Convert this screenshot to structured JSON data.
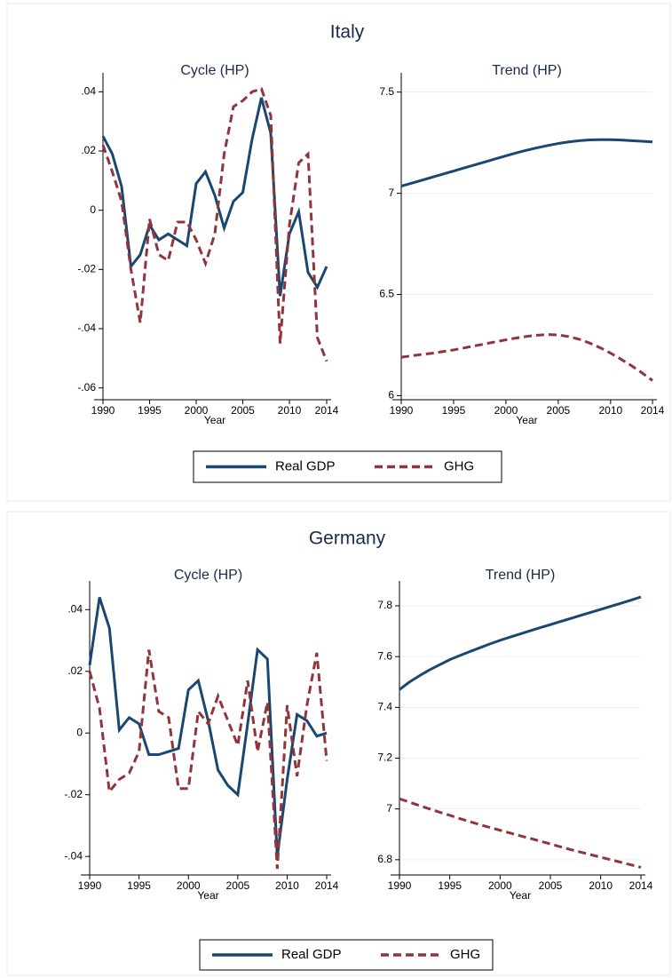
{
  "figures": [
    {
      "title": "Italy"
    },
    {
      "title": "Germany"
    }
  ],
  "chart_data": [
    {
      "type": "line",
      "title": "Cycle (HP)",
      "xlabel": "Year",
      "x": [
        1990,
        1991,
        1992,
        1993,
        1994,
        1995,
        1996,
        1997,
        1998,
        1999,
        2000,
        2001,
        2002,
        2003,
        2004,
        2005,
        2006,
        2007,
        2008,
        2009,
        2010,
        2011,
        2012,
        2013,
        2014
      ],
      "xlim": [
        1990,
        2014
      ],
      "xticks": [
        1990,
        1995,
        2000,
        2005,
        2010,
        2014
      ],
      "ylim": [
        -0.064,
        0.044
      ],
      "yticks": [
        {
          "value": 0.04,
          "label": ".04"
        },
        {
          "value": 0.02,
          "label": ".02"
        },
        0,
        {
          "value": -0.02,
          "label": "-.02"
        },
        {
          "value": -0.04,
          "label": "-.04"
        },
        {
          "value": -0.06,
          "label": "-.06"
        }
      ],
      "grid": false,
      "series": [
        {
          "name": "Real GDP",
          "color": "#1a476f",
          "dash": false,
          "values": [
            0.025,
            0.019,
            0.008,
            -0.019,
            -0.015,
            -0.005,
            -0.01,
            -0.008,
            -0.01,
            -0.012,
            0.009,
            0.013,
            0.005,
            -0.006,
            0.003,
            0.006,
            0.024,
            0.038,
            0.026,
            -0.029,
            -0.008,
            -0.0005,
            -0.021,
            -0.026,
            -0.019
          ]
        },
        {
          "name": "GHG",
          "color": "#90353b",
          "dash": true,
          "values": [
            0.022,
            0.013,
            0.003,
            -0.02,
            -0.038,
            -0.003,
            -0.015,
            -0.017,
            -0.004,
            -0.004,
            -0.01,
            -0.018,
            -0.008,
            0.019,
            0.035,
            0.037,
            0.04,
            0.041,
            0.032,
            -0.045,
            -0.005,
            0.016,
            0.019,
            -0.043,
            -0.051
          ]
        }
      ]
    },
    {
      "type": "line",
      "title": "Trend (HP)",
      "xlabel": "Year",
      "x": [
        1990,
        1991,
        1992,
        1993,
        1994,
        1995,
        1996,
        1997,
        1998,
        1999,
        2000,
        2001,
        2002,
        2003,
        2004,
        2005,
        2006,
        2007,
        2008,
        2009,
        2010,
        2011,
        2012,
        2013,
        2014
      ],
      "xlim": [
        1990,
        2014
      ],
      "xticks": [
        1990,
        1995,
        2000,
        2005,
        2010,
        2014
      ],
      "ylim": [
        5.98,
        7.56
      ],
      "yticks": [
        7.5,
        7,
        6.5,
        6
      ],
      "grid": true,
      "series": [
        {
          "color": "#1a476f",
          "dash": false,
          "values": [
            7.035,
            7.05,
            7.065,
            7.08,
            7.095,
            7.11,
            7.125,
            7.14,
            7.155,
            7.17,
            7.185,
            7.2,
            7.213,
            7.225,
            7.236,
            7.246,
            7.254,
            7.26,
            7.264,
            7.265,
            7.265,
            7.263,
            7.26,
            7.257,
            7.254
          ]
        },
        {
          "color": "#90353b",
          "dash": true,
          "values": [
            6.19,
            6.197,
            6.204,
            6.21,
            6.218,
            6.226,
            6.236,
            6.246,
            6.256,
            6.266,
            6.276,
            6.285,
            6.293,
            6.299,
            6.302,
            6.3,
            6.292,
            6.279,
            6.26,
            6.237,
            6.21,
            6.18,
            6.148,
            6.113,
            6.075
          ]
        }
      ]
    },
    {
      "type": "line",
      "title": "Cycle (HP)",
      "xlabel": "Year",
      "x": [
        1990,
        1991,
        1992,
        1993,
        1994,
        1995,
        1996,
        1997,
        1998,
        1999,
        2000,
        2001,
        2002,
        2003,
        2004,
        2005,
        2006,
        2007,
        2008,
        2009,
        2010,
        2011,
        2012,
        2013,
        2014
      ],
      "xlim": [
        1990,
        2014
      ],
      "xticks": [
        1990,
        1995,
        2000,
        2005,
        2010,
        2014
      ],
      "ylim": [
        -0.046,
        0.047
      ],
      "yticks": [
        {
          "value": 0.04,
          "label": ".04"
        },
        {
          "value": 0.02,
          "label": ".02"
        },
        0,
        {
          "value": -0.02,
          "label": "-.02"
        },
        {
          "value": -0.04,
          "label": "-.04"
        }
      ],
      "grid": false,
      "series": [
        {
          "name": "Real GDP",
          "color": "#1a476f",
          "dash": false,
          "values": [
            0.022,
            0.044,
            0.034,
            0.001,
            0.005,
            0.003,
            -0.007,
            -0.007,
            -0.006,
            -0.005,
            0.014,
            0.017,
            0.004,
            -0.012,
            -0.017,
            -0.02,
            0.003,
            0.027,
            0.024,
            -0.04,
            -0.015,
            0.006,
            0.004,
            -0.001,
            0
          ]
        },
        {
          "name": "GHG",
          "color": "#90353b",
          "dash": true,
          "values": [
            0.02,
            0.008,
            -0.019,
            -0.015,
            -0.013,
            -0.006,
            0.027,
            0.007,
            0.005,
            -0.018,
            -0.018,
            0.007,
            0.003,
            0.012,
            0.004,
            -0.004,
            0.017,
            -0.006,
            0.01,
            -0.044,
            0.009,
            -0.014,
            0.009,
            0.026,
            -0.009
          ]
        }
      ]
    },
    {
      "type": "line",
      "title": "Trend (HP)",
      "xlabel": "Year",
      "x": [
        1990,
        1991,
        1992,
        1993,
        1994,
        1995,
        1996,
        1997,
        1998,
        1999,
        2000,
        2001,
        2002,
        2003,
        2004,
        2005,
        2006,
        2007,
        2008,
        2009,
        2010,
        2011,
        2012,
        2013,
        2014
      ],
      "xlim": [
        1990,
        2014
      ],
      "xticks": [
        1990,
        1995,
        2000,
        2005,
        2010,
        2014
      ],
      "ylim": [
        6.74,
        7.87
      ],
      "yticks": [
        7.8,
        7.6,
        7.4,
        7.2,
        7,
        6.8
      ],
      "grid": true,
      "series": [
        {
          "color": "#1a476f",
          "dash": false,
          "values": [
            7.47,
            7.5,
            7.525,
            7.548,
            7.568,
            7.588,
            7.604,
            7.62,
            7.635,
            7.65,
            7.664,
            7.677,
            7.689,
            7.702,
            7.714,
            7.726,
            7.738,
            7.75,
            7.762,
            7.774,
            7.786,
            7.798,
            7.81,
            7.822,
            7.835
          ]
        },
        {
          "color": "#90353b",
          "dash": true,
          "values": [
            7.04,
            7.027,
            7.013,
            7.0,
            6.987,
            6.975,
            6.962,
            6.95,
            6.938,
            6.927,
            6.916,
            6.905,
            6.894,
            6.884,
            6.873,
            6.862,
            6.851,
            6.84,
            6.83,
            6.82,
            6.81,
            6.8,
            6.79,
            6.78,
            6.77
          ]
        }
      ]
    }
  ]
}
